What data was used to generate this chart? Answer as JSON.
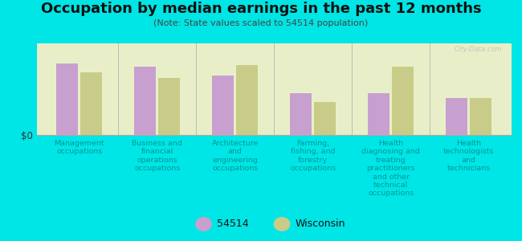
{
  "title": "Occupation by median earnings in the past 12 months",
  "subtitle": "(Note: State values scaled to 54514 population)",
  "background_color": "#00e5e5",
  "plot_bg_grad_top": "#f5f5dc",
  "plot_bg_color": "#e8efc8",
  "bar_color_54514": "#c8a0d0",
  "bar_color_wi": "#c8cc88",
  "watermark": "City-Data.com",
  "ylabel": "$0",
  "legend_labels": [
    "54514",
    "Wisconsin"
  ],
  "categories": [
    "Management\noccupations",
    "Business and\nfinancial\noperations\noccupations",
    "Architecture\nand\nengineering\noccupations",
    "Farming,\nfishing, and\nforestry\noccupations",
    "Health\ndiagnosing and\ntreating\npractitioners\nand other\ntechnical\noccupations",
    "Health\ntechnologists\nand\ntechnicians"
  ],
  "values_54514": [
    0.82,
    0.78,
    0.68,
    0.48,
    0.48,
    0.42
  ],
  "values_wi": [
    0.72,
    0.65,
    0.8,
    0.38,
    0.78,
    0.42
  ],
  "ylim": [
    0,
    1.05
  ],
  "figsize": [
    6.5,
    3.0
  ],
  "dpi": 100,
  "label_color": "#009999",
  "title_fontsize": 13,
  "subtitle_fontsize": 8,
  "tick_label_fontsize": 6.8
}
